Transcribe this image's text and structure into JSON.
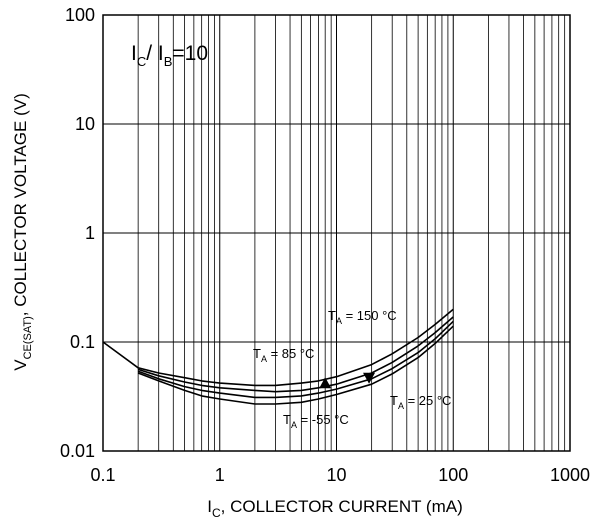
{
  "chart_data": {
    "type": "line",
    "title": "",
    "condition": {
      "I": "I",
      "C": "C",
      "slash": "/ I",
      "B": "B",
      "rest": "=10"
    },
    "xlabel": {
      "I": "I",
      "C": "C",
      "rest": ", COLLECTOR CURRENT (mA)"
    },
    "ylabel": {
      "V": "V",
      "sub": "CE(SAT)",
      "rest": ", COLLECTOR VOLTAGE (V)"
    },
    "x_scale": "log",
    "y_scale": "log",
    "xlim": [
      0.1,
      1000
    ],
    "ylim": [
      0.01,
      100
    ],
    "x_ticks": [
      "0.1",
      "1",
      "10",
      "100",
      "1000"
    ],
    "y_ticks": [
      "0.01",
      "0.1",
      "1",
      "10",
      "100"
    ],
    "grid": true,
    "legend": "none",
    "line_color": "#000000",
    "series": [
      {
        "name": "T_A = 150 °C",
        "x": [
          0.1,
          0.2,
          0.3,
          0.5,
          0.7,
          1,
          2,
          3,
          5,
          7,
          10,
          20,
          30,
          50,
          70,
          100
        ],
        "y": [
          0.1,
          0.058,
          0.052,
          0.047,
          0.044,
          0.042,
          0.04,
          0.04,
          0.042,
          0.044,
          0.048,
          0.062,
          0.078,
          0.11,
          0.145,
          0.2
        ]
      },
      {
        "name": "T_A = 85 °C",
        "x": [
          0.2,
          0.3,
          0.5,
          0.7,
          1,
          2,
          3,
          5,
          7,
          10,
          20,
          30,
          50,
          70,
          100
        ],
        "y": [
          0.056,
          0.049,
          0.043,
          0.04,
          0.038,
          0.036,
          0.035,
          0.036,
          0.038,
          0.041,
          0.052,
          0.065,
          0.092,
          0.122,
          0.17
        ]
      },
      {
        "name": "T_A = 25 °C",
        "x": [
          0.2,
          0.3,
          0.5,
          0.7,
          1,
          2,
          3,
          5,
          7,
          10,
          20,
          30,
          50,
          70,
          100
        ],
        "y": [
          0.054,
          0.046,
          0.039,
          0.036,
          0.034,
          0.031,
          0.031,
          0.032,
          0.034,
          0.037,
          0.046,
          0.057,
          0.08,
          0.107,
          0.155
        ]
      },
      {
        "name": "T_A = -55 °C",
        "x": [
          0.2,
          0.3,
          0.5,
          0.7,
          1,
          2,
          3,
          5,
          7,
          10,
          20,
          30,
          50,
          70,
          100
        ],
        "y": [
          0.052,
          0.044,
          0.036,
          0.032,
          0.03,
          0.027,
          0.027,
          0.028,
          0.03,
          0.033,
          0.041,
          0.051,
          0.072,
          0.097,
          0.14
        ]
      }
    ],
    "annotations": [
      {
        "T": "T",
        "sub": "A",
        "text": " = 150 °C"
      },
      {
        "T": "T",
        "sub": "A",
        "text": " = 85 °C"
      },
      {
        "T": "T",
        "sub": "A",
        "text": " = 25 °C"
      },
      {
        "T": "T",
        "sub": "A",
        "text": " = -55 °C"
      }
    ]
  }
}
